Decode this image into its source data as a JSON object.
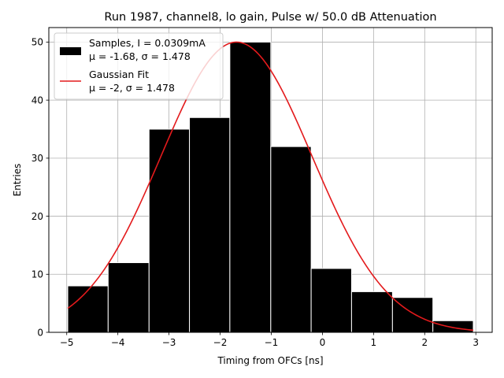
{
  "chart_data": {
    "type": "bar",
    "title": "Run 1987, channel8, lo gain, Pulse w/ 50.0 dB Attenuation",
    "xlabel": "Timing from OFCs [ns]",
    "ylabel": "Entries",
    "xlim": [
      -5.35,
      3.32
    ],
    "ylim": [
      0,
      52.5
    ],
    "xticks": [
      -5,
      -4,
      -3,
      -2,
      -1,
      0,
      1,
      2,
      3
    ],
    "yticks": [
      0,
      10,
      20,
      30,
      40,
      50
    ],
    "grid": true,
    "legend_position": "top-left",
    "histogram": {
      "name": "Samples, I = 0.0309mA",
      "stats_label": "μ = -1.68, σ = 1.478",
      "color": "#000000",
      "edge_color": "#ffffff",
      "bin_edges": [
        -4.98,
        -4.19,
        -3.39,
        -2.6,
        -1.81,
        -1.01,
        -0.22,
        0.57,
        1.37,
        2.16,
        2.95
      ],
      "counts": [
        8,
        12,
        35,
        37,
        50,
        32,
        11,
        7,
        6,
        2
      ]
    },
    "fit": {
      "name": "Gaussian Fit",
      "stats_label": "μ = -2, σ = 1.478",
      "color": "#e31a1c",
      "mu": -1.68,
      "sigma": 1.478,
      "amplitude": 50,
      "x_range": [
        -4.98,
        2.95
      ]
    }
  }
}
